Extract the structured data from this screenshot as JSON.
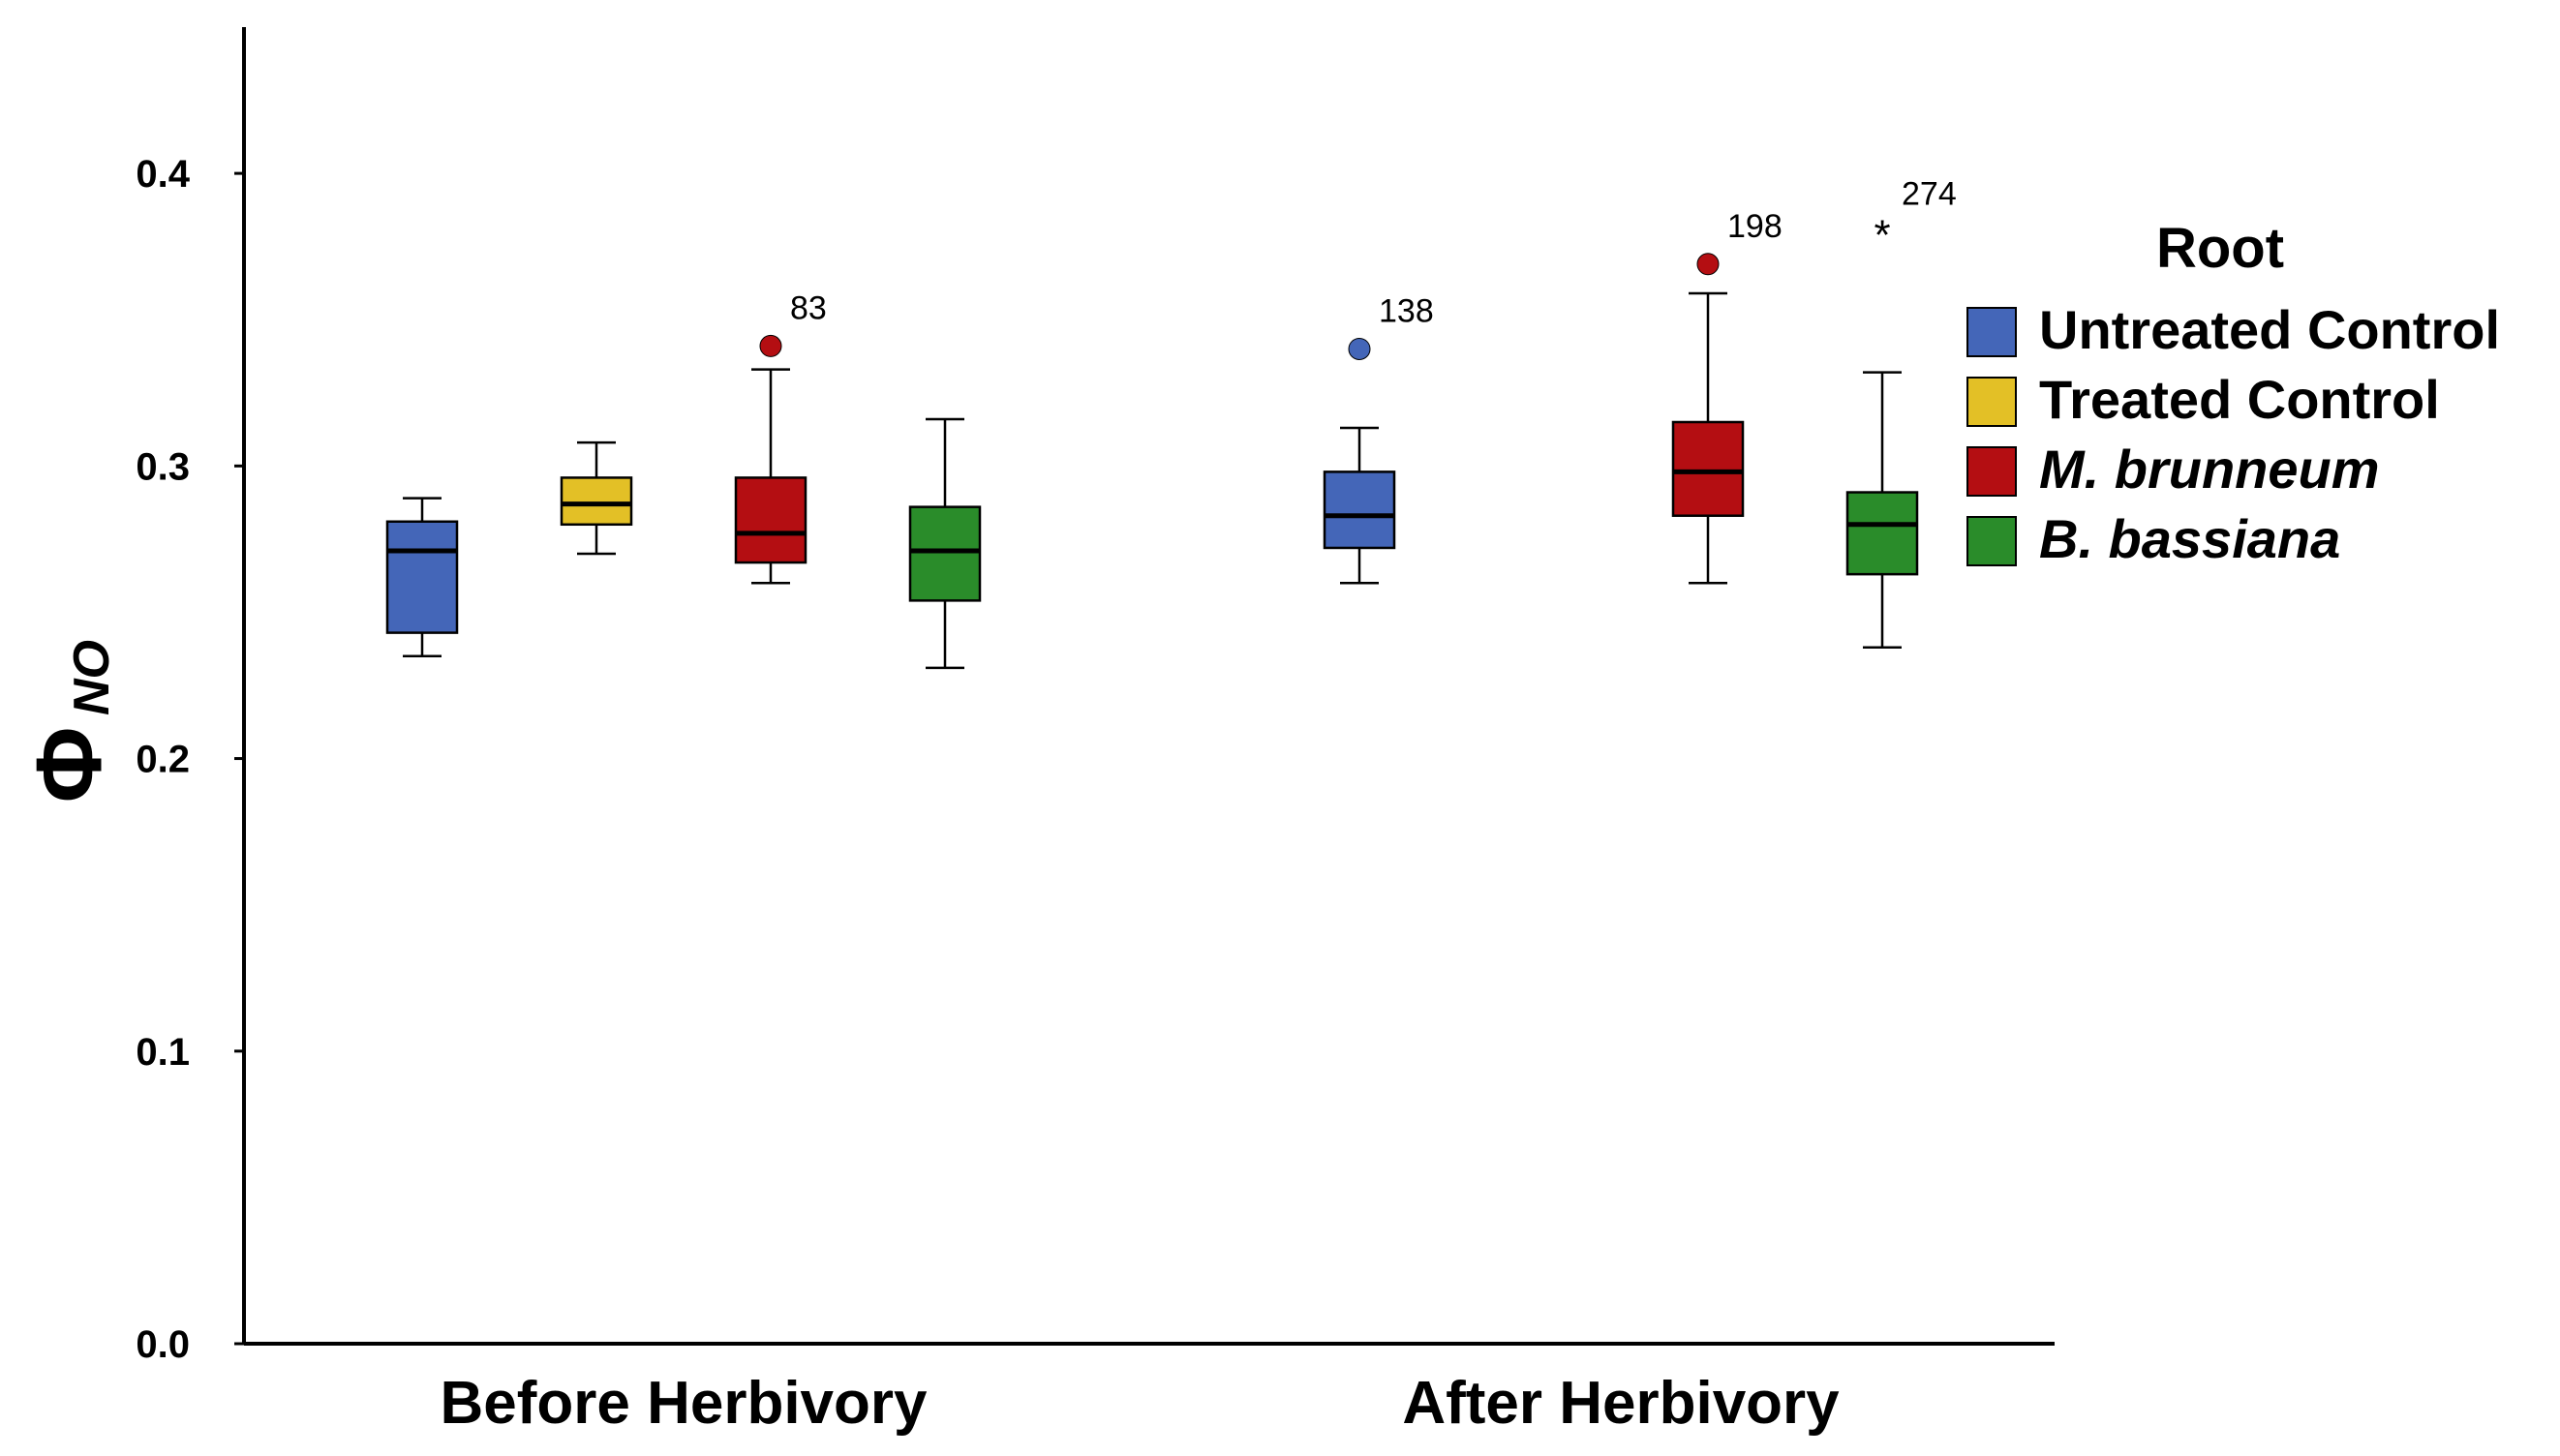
{
  "chart_data": {
    "type": "boxplot",
    "ylabel": {
      "symbol": "Φ",
      "subscript": "NO"
    },
    "ylim": [
      0.0,
      0.45
    ],
    "yticks": [
      0.0,
      0.1,
      0.2,
      0.3,
      0.4
    ],
    "ytick_labels": [
      "0.0",
      "0.1",
      "0.2",
      "0.3",
      "0.4"
    ],
    "categories": [
      "Before Herbivory",
      "After Herbivory"
    ],
    "legend": {
      "title": "Root",
      "position": "right",
      "entries": [
        {
          "name": "Untreated Control",
          "color": "#4466b8",
          "italic": false
        },
        {
          "name": "Treated Control",
          "color": "#e3c026",
          "italic": false
        },
        {
          "name": "M. brunneum",
          "color": "#b40e12",
          "italic": true
        },
        {
          "name": "B. bassiana",
          "color": "#2a8c2a",
          "italic": true
        }
      ]
    },
    "series": [
      {
        "name": "Untreated Control",
        "boxes": [
          {
            "category": "Before Herbivory",
            "whisker_low": 0.235,
            "q1": 0.243,
            "median": 0.271,
            "q3": 0.281,
            "whisker_high": 0.289,
            "outliers": []
          },
          {
            "category": "After Herbivory",
            "whisker_low": 0.26,
            "q1": 0.272,
            "median": 0.283,
            "q3": 0.298,
            "whisker_high": 0.313,
            "outliers": [
              {
                "value": 0.34,
                "label": "138",
                "marker": "circle"
              }
            ]
          }
        ]
      },
      {
        "name": "Treated Control",
        "boxes": [
          {
            "category": "Before Herbivory",
            "whisker_low": 0.27,
            "q1": 0.28,
            "median": 0.287,
            "q3": 0.296,
            "whisker_high": 0.308,
            "outliers": []
          }
        ]
      },
      {
        "name": "M. brunneum",
        "boxes": [
          {
            "category": "Before Herbivory",
            "whisker_low": 0.26,
            "q1": 0.267,
            "median": 0.277,
            "q3": 0.296,
            "whisker_high": 0.333,
            "outliers": [
              {
                "value": 0.341,
                "label": "83",
                "marker": "circle"
              }
            ]
          },
          {
            "category": "After Herbivory",
            "whisker_low": 0.26,
            "q1": 0.283,
            "median": 0.298,
            "q3": 0.315,
            "whisker_high": 0.359,
            "outliers": [
              {
                "value": 0.369,
                "label": "198",
                "marker": "circle"
              }
            ]
          }
        ]
      },
      {
        "name": "B. bassiana",
        "boxes": [
          {
            "category": "Before Herbivory",
            "whisker_low": 0.231,
            "q1": 0.254,
            "median": 0.271,
            "q3": 0.286,
            "whisker_high": 0.316,
            "outliers": []
          },
          {
            "category": "After Herbivory",
            "whisker_low": 0.238,
            "q1": 0.263,
            "median": 0.28,
            "q3": 0.291,
            "whisker_high": 0.332,
            "outliers": [
              {
                "value": 0.38,
                "label": "274",
                "marker": "star"
              }
            ]
          }
        ]
      }
    ]
  }
}
